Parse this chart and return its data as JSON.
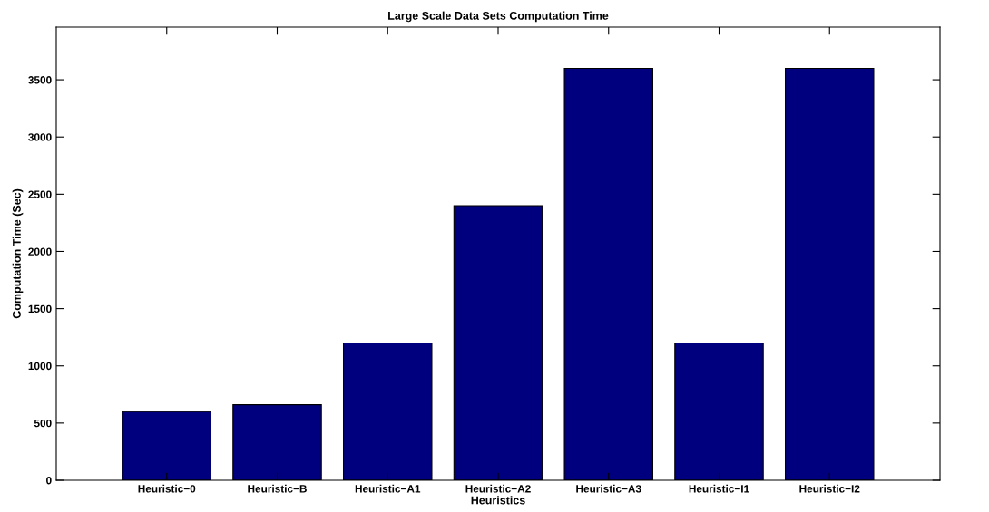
{
  "chart_data": {
    "type": "bar",
    "title": "Large Scale Data Sets Computation Time",
    "xlabel": "Heuristics",
    "ylabel": "Computation Time (Sec)",
    "categories": [
      "Heuristic−0",
      "Heuristic−B",
      "Heuristic−A1",
      "Heuristic−A2",
      "Heuristic−A3",
      "Heuristic−I1",
      "Heuristic−I2"
    ],
    "values": [
      600,
      660,
      1200,
      2400,
      3600,
      1200,
      3600
    ],
    "color": "#00007f",
    "ylim": [
      0,
      3960
    ],
    "yticks": [
      0,
      500,
      1000,
      1500,
      2000,
      2500,
      3000,
      3500
    ],
    "grid": false,
    "legend": false
  }
}
